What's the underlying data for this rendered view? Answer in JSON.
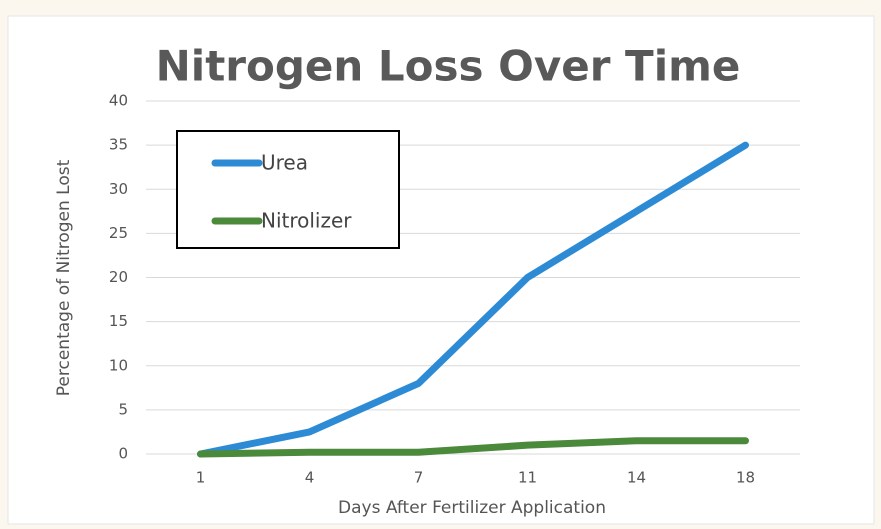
{
  "chart_data": {
    "type": "line",
    "title": "Nitrogen Loss Over Time",
    "xlabel": "Days After Fertilizer Application",
    "ylabel": "Percentage of Nitrogen Lost",
    "categories": [
      "1",
      "4",
      "7",
      "11",
      "14",
      "18"
    ],
    "series": [
      {
        "name": "Urea",
        "color": "#2d8ad4",
        "values": [
          0,
          2.5,
          8,
          20,
          27.5,
          35
        ]
      },
      {
        "name": "Nitrolizer",
        "color": "#4b8a3b",
        "values": [
          0,
          0.2,
          0.2,
          1,
          1.5,
          1.5
        ]
      }
    ],
    "ylim": [
      0,
      40
    ],
    "yticks": [
      0,
      5,
      10,
      15,
      20,
      25,
      30,
      35,
      40
    ],
    "grid": true,
    "legend": "upper left"
  }
}
